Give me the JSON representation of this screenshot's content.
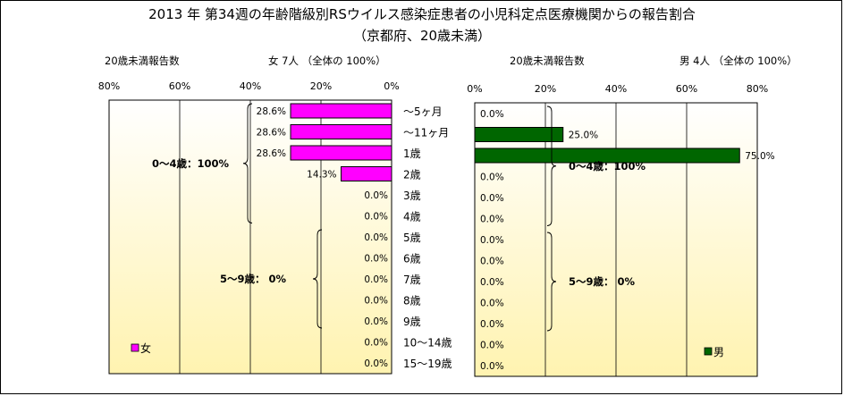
{
  "title_line1": "2013 年 第34週の年齢階級別RSウイルス感染症患者の小児科定点医療機関からの報告割合",
  "title_line2": "（京都府、20歳未満）",
  "left_header": {
    "label": "20歳未満報告数",
    "summary": "女  7人 （全体の  100%）"
  },
  "right_header": {
    "label": "20歳未満報告数",
    "summary": "男  4人 （全体の  100%）"
  },
  "age_groups": [
    "～5ヶ月",
    "～11ヶ月",
    "1歳",
    "2歳",
    "3歳",
    "4歳",
    "5歳",
    "6歳",
    "7歳",
    "8歳",
    "9歳",
    "10～14歳",
    "15～19歳"
  ],
  "groups": {
    "female": [
      {
        "label": "0～4歳：100%",
        "from": 0,
        "to": 5
      },
      {
        "label": "5～9歳：  0%",
        "from": 6,
        "to": 10
      }
    ],
    "male": [
      {
        "label": "0～4歳：100%",
        "from": 0,
        "to": 5
      },
      {
        "label": "5～9歳：  0%",
        "from": 6,
        "to": 10
      }
    ]
  },
  "colors": {
    "female_bar": "#ff00ff",
    "male_bar": "#006600",
    "plot_gradient_top": "#ffffff",
    "plot_gradient_bottom": "#fff3b0"
  },
  "chart_data": [
    {
      "type": "bar",
      "orientation": "horizontal",
      "x_direction": "reversed",
      "series": [
        {
          "name": "女",
          "values": [
            28.6,
            28.6,
            28.6,
            14.3,
            0,
            0,
            0,
            0,
            0,
            0,
            0,
            0,
            0
          ]
        }
      ],
      "value_labels": [
        "28.6%",
        "28.6%",
        "28.6%",
        "14.3%",
        "0.0%",
        "0.0%",
        "0.0%",
        "0.0%",
        "0.0%",
        "0.0%",
        "0.0%",
        "0.0%",
        "0.0%"
      ],
      "xlim": [
        0,
        80
      ],
      "x_ticks": [
        0,
        20,
        40,
        60,
        80
      ],
      "x_tick_labels": [
        "0%",
        "20%",
        "40%",
        "60%",
        "80%"
      ],
      "grid": true,
      "legend": "bottom-left"
    },
    {
      "type": "bar",
      "orientation": "horizontal",
      "series": [
        {
          "name": "男",
          "values": [
            0,
            25,
            75,
            0,
            0,
            0,
            0,
            0,
            0,
            0,
            0,
            0,
            0
          ]
        }
      ],
      "value_labels": [
        "0.0%",
        "25.0%",
        "75.0%",
        "0.0%",
        "0.0%",
        "0.0%",
        "0.0%",
        "0.0%",
        "0.0%",
        "0.0%",
        "0.0%",
        "0.0%",
        "0.0%"
      ],
      "xlim": [
        0,
        80
      ],
      "x_ticks": [
        0,
        20,
        40,
        60,
        80
      ],
      "x_tick_labels": [
        "0%",
        "20%",
        "40%",
        "60%",
        "80%"
      ],
      "grid": true,
      "legend": "bottom-right"
    }
  ]
}
